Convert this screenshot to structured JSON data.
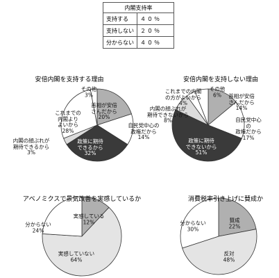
{
  "table": {
    "title": "内閣支持率",
    "rows": [
      [
        "支持する",
        "４０％"
      ],
      [
        "支持しない",
        "２０％"
      ],
      [
        "分からない",
        "４０％"
      ]
    ]
  },
  "chart_data": [
    {
      "type": "pie",
      "title": "安倍内閣を支持する理由",
      "categories": [
        "首相が安倍\nさんだから",
        "自民党中心の\n政権だから",
        "政策に期待\nできるから",
        "内閣の顔ぶれが\n期待できるから",
        "これまでの\n内閣より\nよいから",
        "その他"
      ],
      "values": [
        20,
        14,
        32,
        3,
        28,
        3
      ],
      "value_labels": [
        "20%",
        "14%",
        "32%",
        "3%",
        "28%",
        "3%"
      ],
      "colors": [
        "#b0b0b0",
        "#ffffff",
        "#3a3a3a",
        "#dcdcdc",
        "#ffffff",
        "#ffffff"
      ]
    },
    {
      "type": "pie",
      "title": "安倍内閣を支持しない理由",
      "categories": [
        "首相が安倍\nさんだから",
        "自民党中心の\n政権だから",
        "政策に期待\nできないから",
        "内閣の顔ぶれが\n期待できないから",
        "これまでの内閣\nの方がよいから",
        "その他"
      ],
      "values": [
        14,
        17,
        51,
        8,
        4,
        6
      ],
      "value_labels": [
        "14%",
        "17%",
        "51%",
        "8%",
        "4%",
        "6%"
      ],
      "colors": [
        "#b0b0b0",
        "#ffffff",
        "#3a3a3a",
        "#dcdcdc",
        "#ffffff",
        "#ffffff"
      ]
    },
    {
      "type": "pie",
      "title": "アベノミクスで景気改善を実感しているか",
      "categories": [
        "実感している",
        "実感していない",
        "分からない"
      ],
      "values": [
        12,
        64,
        24
      ],
      "value_labels": [
        "12%",
        "64%",
        "24%"
      ],
      "colors": [
        "#b0b0b0",
        "#e4e4e4",
        "#ffffff"
      ]
    },
    {
      "type": "pie",
      "title": "消費税率引き上げに賛成か",
      "categories": [
        "賛成",
        "反対",
        "分からない"
      ],
      "values": [
        22,
        48,
        30
      ],
      "value_labels": [
        "22%",
        "48%",
        "30%"
      ],
      "colors": [
        "#b0b0b0",
        "#e4e4e4",
        "#ffffff"
      ]
    }
  ]
}
